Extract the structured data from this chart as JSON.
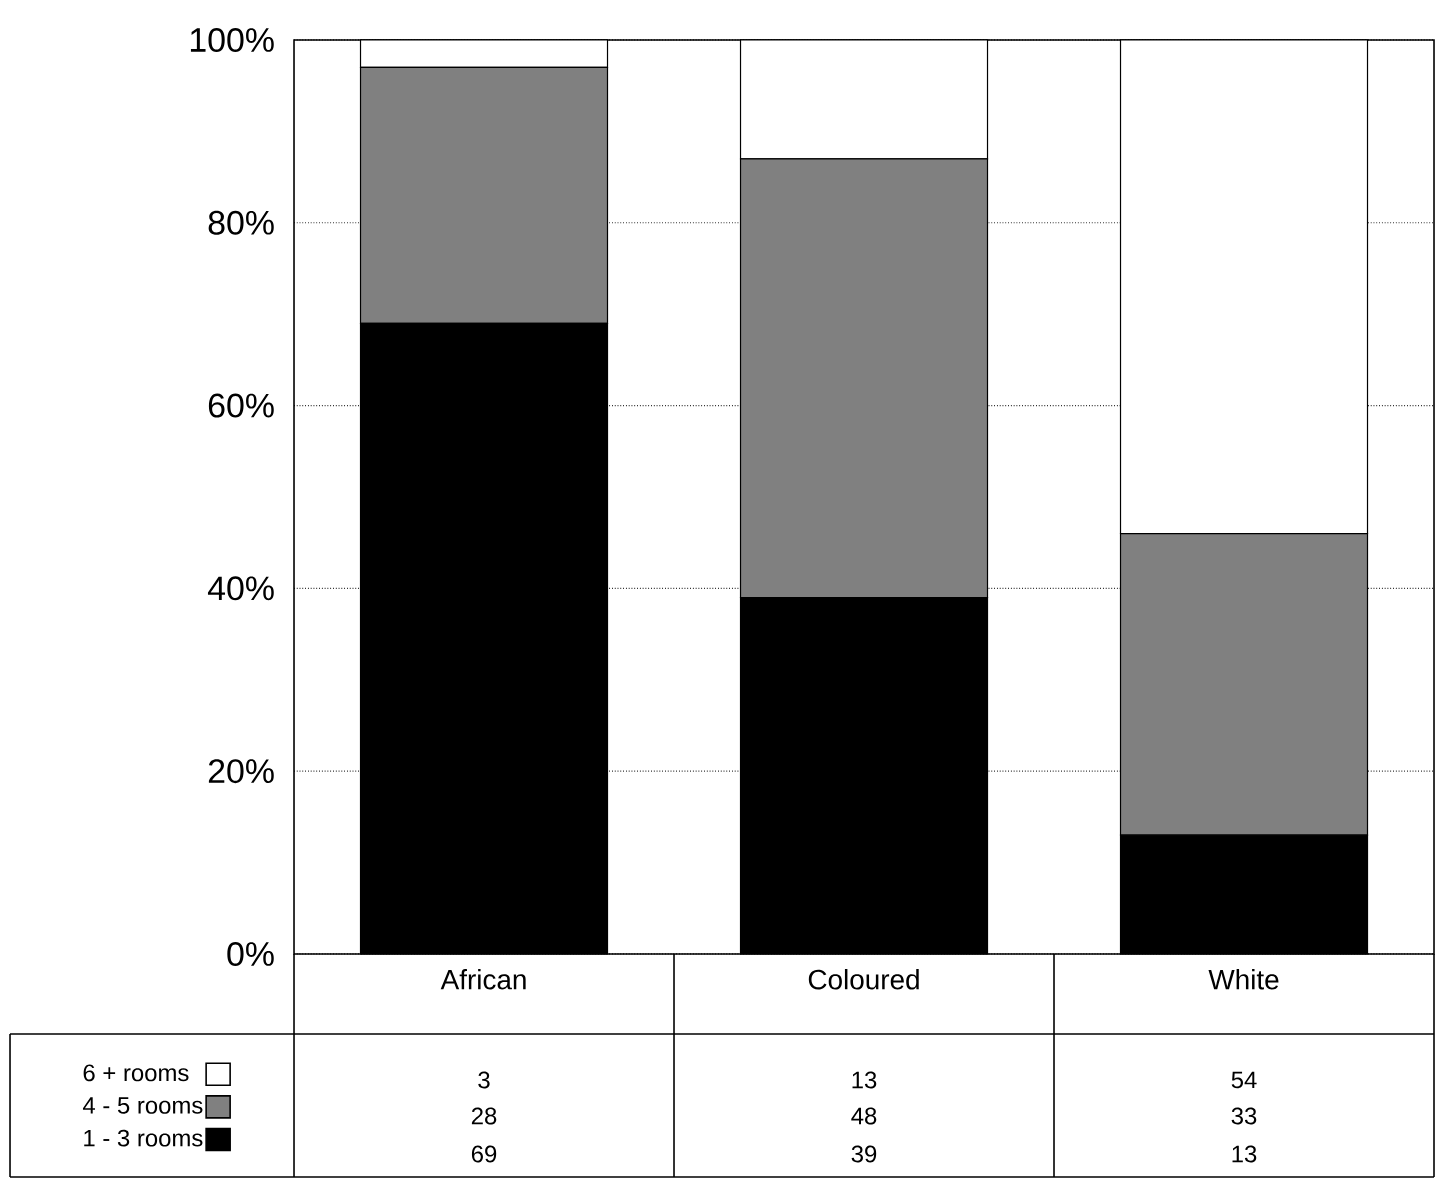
{
  "chart_data": {
    "type": "bar",
    "stacked": true,
    "categories": [
      "African",
      "Coloured",
      "White"
    ],
    "series": [
      {
        "name": "1 - 3 rooms",
        "color": "#000000",
        "values": [
          69,
          39,
          13
        ]
      },
      {
        "name": "4 - 5 rooms",
        "color": "#808080",
        "values": [
          28,
          48,
          33
        ]
      },
      {
        "name": "6 + rooms",
        "color": "#ffffff",
        "values": [
          3,
          13,
          54
        ]
      }
    ],
    "ylim": [
      0,
      100
    ],
    "yticks": [
      {
        "value": 0,
        "label": "0%"
      },
      {
        "value": 20,
        "label": "20%"
      },
      {
        "value": 40,
        "label": "40%"
      },
      {
        "value": 60,
        "label": "60%"
      },
      {
        "value": 80,
        "label": "80%"
      },
      {
        "value": 100,
        "label": "100%"
      }
    ],
    "grid": "y",
    "legend": "bottom",
    "data_labels": true
  }
}
